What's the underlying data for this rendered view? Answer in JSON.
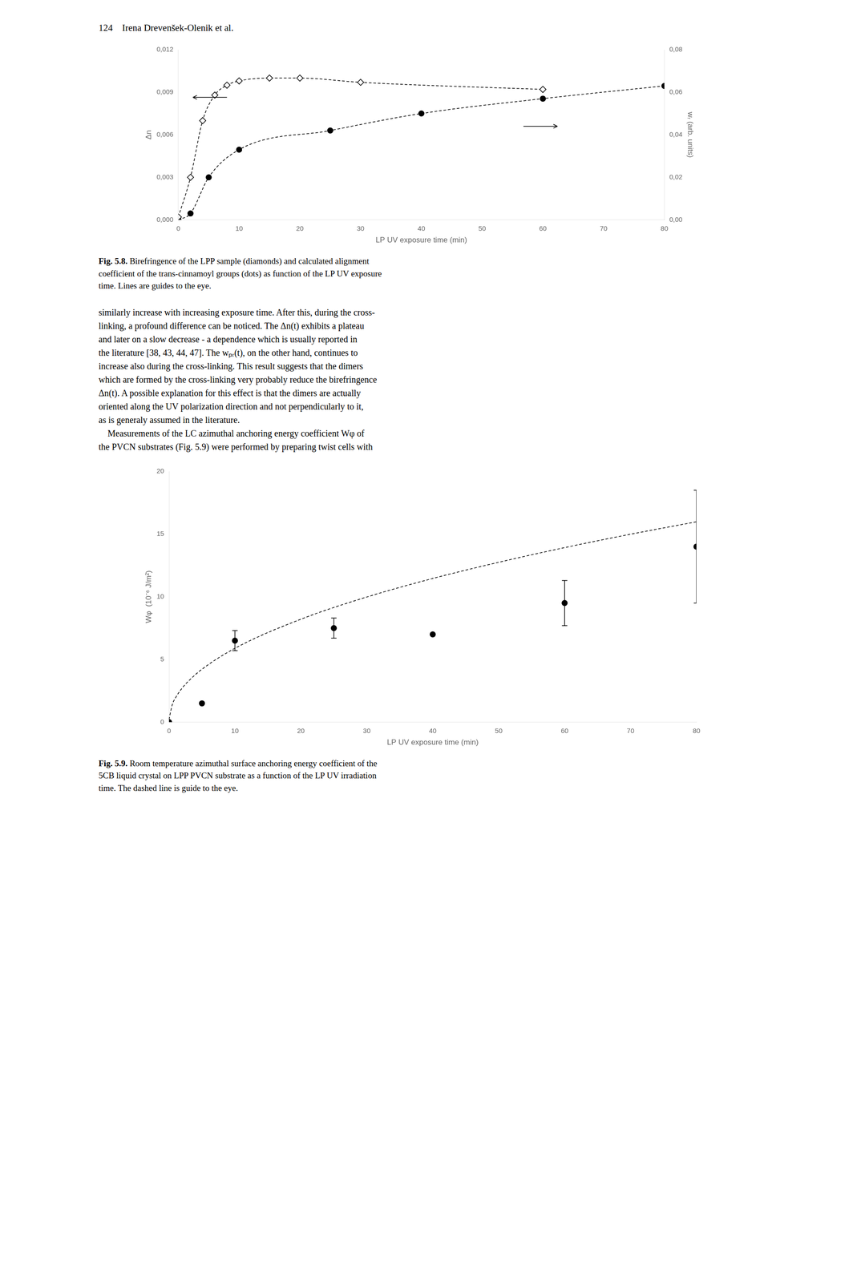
{
  "header": "124    Irena Drevenšek-Olenik et al.",
  "body_text": [
    "similarly increase with increasing exposure time. After this, during the cross-",
    "linking, a profound difference can be noticed. The Δn(t) exhibits a plateau",
    "and later on a slow decrease - a dependence which is usually reported in",
    "the literature [38, 43, 44, 47]. The wₚᵣ(t), on the other hand, continues to",
    "increase also during the cross-linking. This result suggests that the dimers",
    "which are formed by the cross-linking very probably reduce the birefringence",
    "Δn(t). A possible explanation for this effect is that the dimers are actually",
    "oriented along the UV polarization direction and not perpendicularly to it,",
    "as is generaly assumed in the literature.",
    "    Measurements of the LC azimuthal anchoring energy coefficient Wφ of",
    "the PVCN substrates (Fig. 5.9) were performed by preparing twist cells with"
  ],
  "chart_data": [
    {
      "type": "line",
      "caption_label": "Fig. 5.8.",
      "caption": " Birefringence of the LPP sample (diamonds) and calculated alignment\ncoefficient of the trans-cinnamoyl groups (dots) as function of the LP UV exposure\ntime. Lines are guides to the eye.",
      "xlabel": "LP UV exposure time (min)",
      "ylabel": "Δn",
      "y2label": "wᵣ (arb. units)",
      "xlim": [
        0,
        80
      ],
      "xticks": [
        0,
        10,
        20,
        30,
        40,
        50,
        60,
        70,
        80
      ],
      "ylim": [
        0.0,
        0.012
      ],
      "yticks": [
        {
          "value": 0.0,
          "label": "0,000"
        },
        {
          "value": 0.003,
          "label": "0,003"
        },
        {
          "value": 0.006,
          "label": "0,006"
        },
        {
          "value": 0.009,
          "label": "0,009"
        },
        {
          "value": 0.012,
          "label": "0,012"
        }
      ],
      "y2lim": [
        0.0,
        0.08
      ],
      "y2ticks": [
        {
          "value": 0.0,
          "label": "0,00"
        },
        {
          "value": 0.02,
          "label": "0,02"
        },
        {
          "value": 0.04,
          "label": "0,04"
        },
        {
          "value": 0.06,
          "label": "0,06"
        },
        {
          "value": 0.08,
          "label": "0,08"
        }
      ],
      "grid": false,
      "series": [
        {
          "color": "#000000",
          "marker": "diamond",
          "line_style": "dashed",
          "x": [
            0,
            2,
            4,
            6,
            8,
            10,
            15,
            20,
            30,
            60
          ],
          "values": [
            0.0002,
            0.003,
            0.007,
            0.0088,
            0.0095,
            0.0098,
            0.01,
            0.01,
            0.0097,
            0.0092
          ]
        },
        {
          "color": "#000000",
          "marker": "circle",
          "line_style": "dashed",
          "axis": "y2",
          "x": [
            0,
            2,
            5,
            10,
            25,
            40,
            60,
            80
          ],
          "values": [
            0.0,
            0.003,
            0.02,
            0.033,
            0.042,
            0.05,
            0.057,
            0.063
          ]
        }
      ]
    },
    {
      "type": "scatter",
      "caption_label": "Fig. 5.9.",
      "caption": " Room temperature azimuthal surface anchoring energy coefficient of the\n5CB liquid crystal on LPP PVCN substrate as a function of the LP UV irradiation\ntime. The dashed line is guide to the eye.",
      "xlabel": "LP UV exposure time (min)",
      "ylabel": "Wφ  (10⁻⁶ J/m²)",
      "xlim": [
        0,
        80
      ],
      "xticks": [
        0,
        10,
        20,
        30,
        40,
        50,
        60,
        70,
        80
      ],
      "ylim": [
        0,
        20
      ],
      "yticks": [
        0,
        5,
        10,
        15,
        20
      ],
      "grid": false,
      "series": [
        {
          "type": "line",
          "color": "#000000",
          "line_style": "dashed",
          "x": [
            0,
            0.5,
            1,
            2,
            3,
            5,
            10,
            20,
            30,
            40,
            50,
            60,
            70,
            80
          ],
          "values": [
            0.21,
            1.4,
            1.95,
            2.72,
            3.3,
            4.22,
            5.89,
            8.21,
            9.98,
            11.46,
            12.75,
            13.92,
            14.99,
            15.98
          ]
        },
        {
          "type": "scatter",
          "color": "#000000",
          "marker": "circle",
          "x": [
            0,
            5,
            10,
            25,
            40,
            60,
            80
          ],
          "values": [
            0.0,
            1.5,
            6.5,
            7.5,
            7.0,
            9.5,
            14.0
          ],
          "yerr": [
            0.0,
            0.0,
            0.8,
            0.8,
            0.0,
            1.8,
            4.5
          ]
        }
      ]
    }
  ]
}
